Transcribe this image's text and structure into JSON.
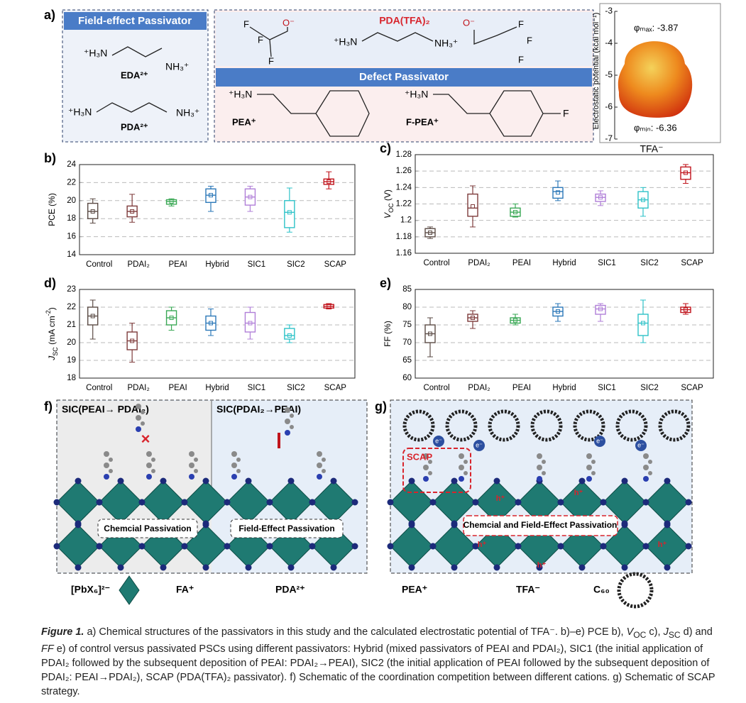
{
  "panel_a": {
    "label": "a)",
    "field_effect": {
      "title": "Field-effect Passivator",
      "eda": {
        "left": "⁺H₃N",
        "right": "NH₃⁺",
        "name": "EDA²⁺"
      },
      "pda": {
        "left": "⁺H₃N",
        "right": "NH₃⁺",
        "name": "PDA²⁺"
      }
    },
    "pda_tfa": {
      "name": "PDA(TFA)₂",
      "f": "F",
      "o": "O⁻",
      "left": "⁺H₃N",
      "right": "NH₃⁺"
    },
    "defect": {
      "title": "Defect Passivator",
      "pea": {
        "amine": "⁺H₃N",
        "name": "PEA⁺"
      },
      "fpea": {
        "amine": "⁺H₃N",
        "name": "F-PEA⁺",
        "f": "F"
      }
    },
    "esp": {
      "axis_label": "Electrostatic potential (kcal mol⁻¹)",
      "ylim": [
        -7,
        -3
      ],
      "yticks": [
        -3,
        -4,
        -5,
        -6,
        -7
      ],
      "max": "φₘₐₓ: -3.87",
      "min": "φₘᵢₙ: -6.36",
      "name": "TFA⁻"
    }
  },
  "chart_data": [
    {
      "type": "box",
      "panel": "b)",
      "y_label": [
        {
          "t": "PCE (%)"
        }
      ],
      "categories": [
        "Control",
        "PDAI₂",
        "PEAI",
        "Hybrid",
        "SIC1",
        "SIC2",
        "SCAP"
      ],
      "colors": [
        "#5b4b45",
        "#7e3b3b",
        "#3aa855",
        "#2c78b8",
        "#b07fd8",
        "#2ec2c8",
        "#c0141c"
      ],
      "boxes": [
        {
          "min": 17.5,
          "q1": 18,
          "median": 18.8,
          "q3": 19.7,
          "max": 20.2,
          "mean": 18.8
        },
        {
          "min": 17.6,
          "q1": 18.2,
          "median": 18.8,
          "q3": 19.4,
          "max": 20.7,
          "mean": 18.8
        },
        {
          "min": 19.4,
          "q1": 19.6,
          "median": 19.9,
          "q3": 20.1,
          "max": 20.2,
          "mean": 19.9
        },
        {
          "min": 18.8,
          "q1": 19.8,
          "median": 20.6,
          "q3": 21.3,
          "max": 21.6,
          "mean": 20.6
        },
        {
          "min": 18.8,
          "q1": 19.5,
          "median": 20.4,
          "q3": 21.3,
          "max": 21.6,
          "mean": 20.4
        },
        {
          "min": 16.5,
          "q1": 17,
          "median": 18.7,
          "q3": 20,
          "max": 21.4,
          "mean": 18.7
        },
        {
          "min": 21.3,
          "q1": 21.8,
          "median": 22.1,
          "q3": 22.4,
          "max": 23.2,
          "mean": 22.1
        }
      ],
      "ylim": [
        14,
        24
      ],
      "yticks": [
        14,
        16,
        18,
        20,
        22,
        24
      ],
      "grid": true
    },
    {
      "type": "box",
      "panel": "c)",
      "y_label": [
        {
          "t": "V",
          "s": "i"
        },
        {
          "t": "OC",
          "s": "sub"
        },
        {
          "t": " (V)"
        }
      ],
      "categories": [
        "Control",
        "PDAI₂",
        "PEAI",
        "Hybrid",
        "SIC1",
        "SIC2",
        "SCAP"
      ],
      "colors": [
        "#5b4b45",
        "#7e3b3b",
        "#3aa855",
        "#2c78b8",
        "#b07fd8",
        "#2ec2c8",
        "#c0141c"
      ],
      "boxes": [
        {
          "min": 1.178,
          "q1": 1.18,
          "median": 1.185,
          "q3": 1.19,
          "max": 1.192,
          "mean": 1.185
        },
        {
          "min": 1.192,
          "q1": 1.205,
          "median": 1.215,
          "q3": 1.232,
          "max": 1.242,
          "mean": 1.217
        },
        {
          "min": 1.204,
          "q1": 1.205,
          "median": 1.21,
          "q3": 1.215,
          "max": 1.22,
          "mean": 1.21
        },
        {
          "min": 1.224,
          "q1": 1.227,
          "median": 1.235,
          "q3": 1.24,
          "max": 1.248,
          "mean": 1.234
        },
        {
          "min": 1.218,
          "q1": 1.223,
          "median": 1.228,
          "q3": 1.232,
          "max": 1.236,
          "mean": 1.228
        },
        {
          "min": 1.205,
          "q1": 1.215,
          "median": 1.225,
          "q3": 1.235,
          "max": 1.24,
          "mean": 1.225
        },
        {
          "min": 1.245,
          "q1": 1.25,
          "median": 1.258,
          "q3": 1.265,
          "max": 1.268,
          "mean": 1.258
        }
      ],
      "ylim": [
        1.16,
        1.28
      ],
      "yticks": [
        1.16,
        1.18,
        1.2,
        1.22,
        1.24,
        1.26,
        1.28
      ],
      "grid": true
    },
    {
      "type": "box",
      "panel": "d)",
      "y_label": [
        {
          "t": "J",
          "s": "i"
        },
        {
          "t": "SC",
          "s": "sub"
        },
        {
          "t": " (mA cm"
        },
        {
          "t": "-2",
          "s": "sup"
        },
        {
          "t": ")"
        }
      ],
      "categories": [
        "Control",
        "PDAI₂",
        "PEAI",
        "Hybrid",
        "SIC1",
        "SIC2",
        "SCAP"
      ],
      "colors": [
        "#5b4b45",
        "#7e3b3b",
        "#3aa855",
        "#2c78b8",
        "#b07fd8",
        "#2ec2c8",
        "#c0141c"
      ],
      "boxes": [
        {
          "min": 20.2,
          "q1": 21,
          "median": 21.5,
          "q3": 22,
          "max": 22.4,
          "mean": 21.5
        },
        {
          "min": 18.9,
          "q1": 19.6,
          "median": 20.1,
          "q3": 20.6,
          "max": 21.1,
          "mean": 20.1
        },
        {
          "min": 20.7,
          "q1": 21,
          "median": 21.4,
          "q3": 21.8,
          "max": 22,
          "mean": 21.4
        },
        {
          "min": 20.4,
          "q1": 20.7,
          "median": 21.1,
          "q3": 21.5,
          "max": 21.9,
          "mean": 21.1
        },
        {
          "min": 20.2,
          "q1": 20.6,
          "median": 21.1,
          "q3": 21.7,
          "max": 22,
          "mean": 21.1
        },
        {
          "min": 20,
          "q1": 20.2,
          "median": 20.4,
          "q3": 20.8,
          "max": 21,
          "mean": 20.4
        },
        {
          "min": 21.9,
          "q1": 21.95,
          "median": 22.05,
          "q3": 22.15,
          "max": 22.2,
          "mean": 22.05
        }
      ],
      "ylim": [
        18,
        23
      ],
      "yticks": [
        18,
        19,
        20,
        21,
        22,
        23
      ],
      "grid": true
    },
    {
      "type": "box",
      "panel": "e)",
      "y_label": [
        {
          "t": "FF (%)"
        }
      ],
      "categories": [
        "Control",
        "PDAI₂",
        "PEAI",
        "Hybrid",
        "SIC1",
        "SIC2",
        "SCAP"
      ],
      "colors": [
        "#5b4b45",
        "#7e3b3b",
        "#3aa855",
        "#2c78b8",
        "#b07fd8",
        "#2ec2c8",
        "#c0141c"
      ],
      "boxes": [
        {
          "min": 66,
          "q1": 70,
          "median": 72.5,
          "q3": 75,
          "max": 77,
          "mean": 72.5
        },
        {
          "min": 74,
          "q1": 76,
          "median": 77,
          "q3": 78,
          "max": 79,
          "mean": 77
        },
        {
          "min": 75,
          "q1": 75.5,
          "median": 76.3,
          "q3": 77,
          "max": 78,
          "mean": 76.3
        },
        {
          "min": 76,
          "q1": 77.5,
          "median": 78.8,
          "q3": 80,
          "max": 81,
          "mean": 78.8
        },
        {
          "min": 76,
          "q1": 78,
          "median": 79.5,
          "q3": 80.5,
          "max": 81,
          "mean": 79.5
        },
        {
          "min": 70,
          "q1": 72,
          "median": 75.5,
          "q3": 78,
          "max": 82,
          "mean": 75.5
        },
        {
          "min": 78,
          "q1": 78.5,
          "median": 79.3,
          "q3": 80,
          "max": 81,
          "mean": 79.3
        }
      ],
      "ylim": [
        60,
        85
      ],
      "yticks": [
        60,
        65,
        70,
        75,
        80,
        85
      ],
      "grid": true
    }
  ],
  "panel_f": {
    "label": "f)",
    "left_title": "SIC(PEAI→ PDAI₂)",
    "right_title": "SIC(PDAI₂→PEAI)",
    "chem": "Chemcial Passivation",
    "field": "Field-Effect Passivation"
  },
  "panel_g": {
    "label": "g)",
    "scap": "SCAP",
    "both": "Chemcial and Field-Effect Passivation",
    "electron": "e⁻",
    "hole": "h⁺"
  },
  "legend": {
    "pbx": "[PbX₆]²⁻",
    "fa": "FA⁺",
    "pda": "PDA²⁺",
    "pea": "PEA⁺",
    "tfa": "TFA⁻",
    "c60": "C₆₀"
  },
  "caption": [
    {
      "t": "Figure 1.",
      "s": "b"
    },
    {
      "t": " a) Chemical structures of the passivators in this study and the calculated electrostatic potential of TFA⁻. b)–e) PCE b), "
    },
    {
      "t": "V",
      "s": "i"
    },
    {
      "t": "OC",
      "s": "sub"
    },
    {
      "t": " c), "
    },
    {
      "t": "J",
      "s": "i"
    },
    {
      "t": "SC",
      "s": "sub"
    },
    {
      "t": " d) and "
    },
    {
      "t": "FF",
      "s": "i"
    },
    {
      "t": " e) of control versus passivated PSCs using different passivators: Hybrid (mixed passivators of PEAI and PDAI₂), SIC1 (the initial application of PDAI₂ followed by the subsequent deposition of PEAI: PDAI₂→PEAI), SIC2 (the initial application of PEAI followed by the subsequent deposition of PDAI₂: PEAI→PDAI₂), SCAP (PDA(TFA)₂ passivator). f) Schematic of the coordination competition between different cations. g) Schematic of SCAP strategy."
    }
  ]
}
